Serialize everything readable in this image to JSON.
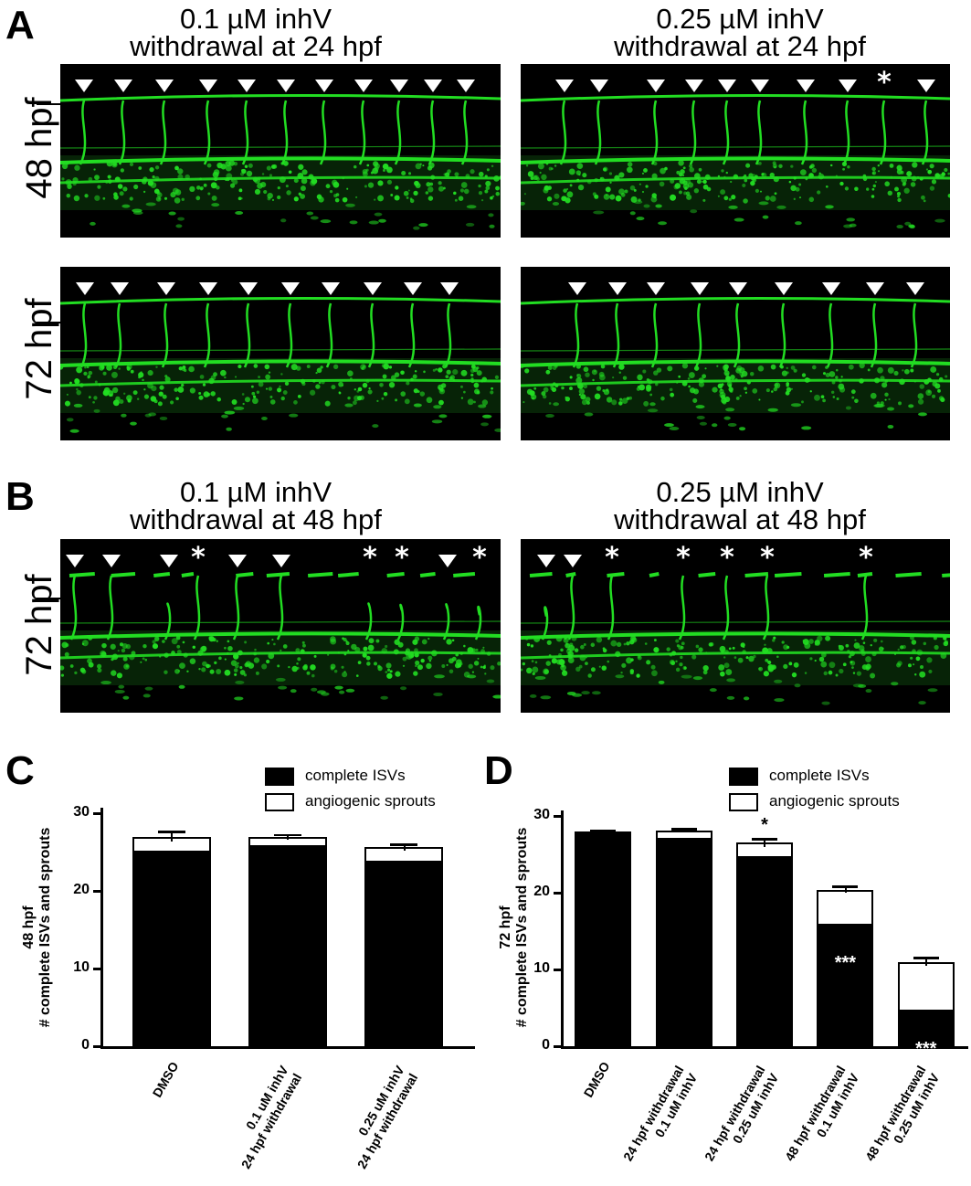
{
  "panels": {
    "A": {
      "letter": "A",
      "col1_title": [
        "0.1 µM inhV",
        "withdrawal at 24 hpf"
      ],
      "col2_title": [
        "0.25 µM inhV",
        "withdrawal at 24 hpf"
      ],
      "row1_label": "48 hpf",
      "row2_label": "72 hpf"
    },
    "B": {
      "letter": "B",
      "col1_title": [
        "0.1 µM inhV",
        "withdrawal at 48 hpf"
      ],
      "col2_title": [
        "0.25 µM inhV",
        "withdrawal at 48 hpf"
      ],
      "row_label": "72 hpf"
    },
    "C": {
      "letter": "C"
    },
    "D": {
      "letter": "D"
    }
  },
  "colors": {
    "vessel_green": "#22dd22",
    "background": "#000000",
    "marker": "#ffffff"
  },
  "chart_data": [
    {
      "id": "C",
      "type": "bar",
      "stacked": true,
      "ylabel_lines": [
        "48 hpf",
        "# complete ISVs and sprouts"
      ],
      "ylim": [
        0,
        30
      ],
      "yticks": [
        0,
        10,
        20,
        30
      ],
      "legend": {
        "placement": "top-right",
        "entries": [
          "complete ISVs",
          "angiogenic sprouts"
        ]
      },
      "categories": [
        [
          "DMSO"
        ],
        [
          "0.1 uM inhV",
          "24 hpf withdrawal"
        ],
        [
          "0.25 uM inhV",
          "24 hpf withdrawal"
        ]
      ],
      "series": [
        {
          "name": "complete ISVs",
          "fill": "#000000",
          "values": [
            25.0,
            25.6,
            23.6
          ],
          "errors": [
            0.8,
            0.4,
            0.6
          ]
        },
        {
          "name": "angiogenic sprouts",
          "fill": "#ffffff",
          "values": [
            2.0,
            1.3,
            2.0
          ],
          "errors": [
            0.6,
            0.3,
            0.4
          ]
        }
      ],
      "annotations": []
    },
    {
      "id": "D",
      "type": "bar",
      "stacked": true,
      "ylabel_lines": [
        "72 hpf",
        "# complete ISVs and sprouts"
      ],
      "ylim": [
        0,
        30
      ],
      "yticks": [
        0,
        10,
        20,
        30
      ],
      "legend": {
        "placement": "top-right",
        "entries": [
          "complete ISVs",
          "angiogenic sprouts"
        ]
      },
      "categories": [
        [
          "DMSO"
        ],
        [
          "24 hpf withdrawal",
          "0.1 uM inhV"
        ],
        [
          "24 hpf withdrawal",
          "0.25 uM inhV"
        ],
        [
          "48 hpf withdrawal",
          "0.1 uM inhV"
        ],
        [
          "48 hpf withdrawal",
          "0.25 uM inhV"
        ]
      ],
      "series": [
        {
          "name": "complete ISVs",
          "fill": "#000000",
          "values": [
            27.8,
            26.9,
            24.5,
            15.7,
            4.5
          ],
          "errors": [
            0.1,
            0.3,
            0.7,
            0.5,
            0.3
          ]
        },
        {
          "name": "angiogenic sprouts",
          "fill": "#ffffff",
          "values": [
            0.2,
            1.2,
            2.0,
            4.7,
            6.5
          ],
          "errors": [
            0.1,
            0.2,
            0.5,
            0.4,
            0.5
          ]
        }
      ],
      "annotations": [
        {
          "category": 2,
          "text": "*",
          "position": "above"
        },
        {
          "category": 3,
          "text": "***",
          "position": "inside-black"
        },
        {
          "category": 4,
          "text": "***",
          "position": "inside-black"
        }
      ]
    }
  ]
}
